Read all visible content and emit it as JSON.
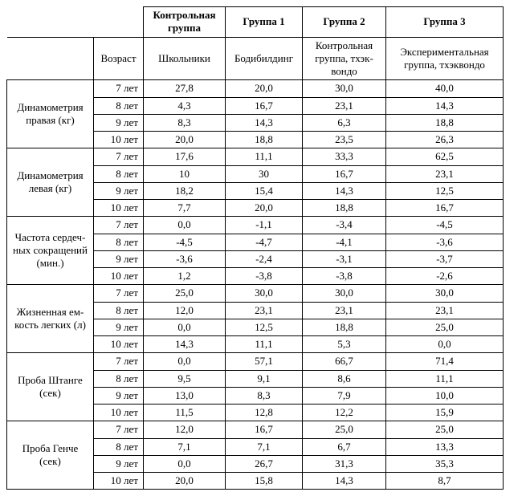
{
  "header": {
    "age_label": "Возраст",
    "groups": [
      "Контрольная группа",
      "Группа 1",
      "Группа 2",
      "Группа 3"
    ],
    "subgroups": [
      "Школьники",
      "Бодибилдинг",
      "Контрольная группа, тхэк-вондо",
      "Экспериментальная группа, тхэквондо"
    ]
  },
  "ages": [
    "7 лет",
    "8 лет",
    "9 лет",
    "10 лет"
  ],
  "metrics": [
    {
      "name": "Динамометрия правая (кг)",
      "rows": [
        [
          "27,8",
          "20,0",
          "30,0",
          "40,0"
        ],
        [
          "4,3",
          "16,7",
          "23,1",
          "14,3"
        ],
        [
          "8,3",
          "14,3",
          "6,3",
          "18,8"
        ],
        [
          "20,0",
          "18,8",
          "23,5",
          "26,3"
        ]
      ]
    },
    {
      "name": "Динамометрия левая (кг)",
      "rows": [
        [
          "17,6",
          "11,1",
          "33,3",
          "62,5"
        ],
        [
          "10",
          "30",
          "16,7",
          "23,1"
        ],
        [
          "18,2",
          "15,4",
          "14,3",
          "12,5"
        ],
        [
          "7,7",
          "20,0",
          "18,8",
          "16,7"
        ]
      ]
    },
    {
      "name": "Частота сердеч-ных сокращений (мин.)",
      "rows": [
        [
          "0,0",
          "-1,1",
          "-3,4",
          "-4,5"
        ],
        [
          "-4,5",
          "-4,7",
          "-4,1",
          "-3,6"
        ],
        [
          "-3,6",
          "-2,4",
          "-3,1",
          "-3,7"
        ],
        [
          "1,2",
          "-3,8",
          "-3,8",
          "-2,6"
        ]
      ]
    },
    {
      "name": "Жизненная ем-кость легких (л)",
      "rows": [
        [
          "25,0",
          "30,0",
          "30,0",
          "30,0"
        ],
        [
          "12,0",
          "23,1",
          "23,1",
          "23,1"
        ],
        [
          "0,0",
          "12,5",
          "18,8",
          "25,0"
        ],
        [
          "14,3",
          "11,1",
          "5,3",
          "0,0"
        ]
      ]
    },
    {
      "name": "Проба Штанге (сек)",
      "rows": [
        [
          "0,0",
          "57,1",
          "66,7",
          "71,4"
        ],
        [
          "9,5",
          "9,1",
          "8,6",
          "11,1"
        ],
        [
          "13,0",
          "8,3",
          "7,9",
          "10,0"
        ],
        [
          "11,5",
          "12,8",
          "12,2",
          "15,9"
        ]
      ]
    },
    {
      "name": "Проба Генче (сек)",
      "rows": [
        [
          "12,0",
          "16,7",
          "25,0",
          "25,0"
        ],
        [
          "7,1",
          "7,1",
          "6,7",
          "13,3"
        ],
        [
          "0,0",
          "26,7",
          "31,3",
          "35,3"
        ],
        [
          "20,0",
          "15,8",
          "14,3",
          "8,7"
        ]
      ]
    }
  ],
  "style": {
    "font_family": "Times New Roman",
    "font_size_pt": 10,
    "border_color": "#000000",
    "background_color": "#ffffff",
    "text_color": "#000000"
  }
}
